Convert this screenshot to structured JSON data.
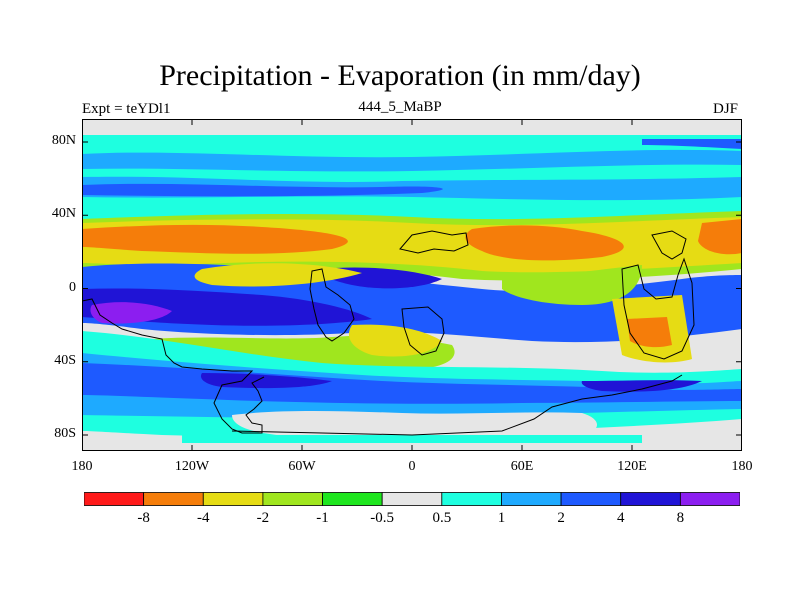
{
  "title": "Precipitation - Evaporation (in mm/day)",
  "left_subtitle": "Expt = teYDl1",
  "center_subtitle": "444_5_MaBP",
  "right_subtitle": "DJF",
  "y_ticks": [
    "80N",
    "40N",
    "0",
    "40S",
    "80S"
  ],
  "y_tick_values": [
    80,
    40,
    0,
    -40,
    -80
  ],
  "x_ticks": [
    "180",
    "120W",
    "60W",
    "0",
    "60E",
    "120E",
    "180"
  ],
  "x_tick_values": [
    -180,
    -120,
    -60,
    0,
    60,
    120,
    180
  ],
  "colorbar": {
    "colors": [
      "#ff1a1a",
      "#f57d0a",
      "#e6dc14",
      "#a0e61e",
      "#1ee61e",
      "#e6e6e6",
      "#1effe0",
      "#1eaaff",
      "#1e5aff",
      "#2014d6",
      "#8c1ef0"
    ],
    "labels": [
      "-8",
      "-4",
      "-2",
      "-1",
      "-0.5",
      "0.5",
      "1",
      "2",
      "4",
      "8"
    ]
  },
  "map_colors": {
    "neutral": "#e6e6e6",
    "cyan": "#1effe0",
    "light_blue": "#1eaaff",
    "blue": "#1e5aff",
    "dark_blue": "#2014d6",
    "purple": "#8c1ef0",
    "green": "#1ee61e",
    "light_green": "#a0e61e",
    "yellow": "#e6dc14",
    "orange": "#f57d0a",
    "red": "#ff1a1a"
  }
}
